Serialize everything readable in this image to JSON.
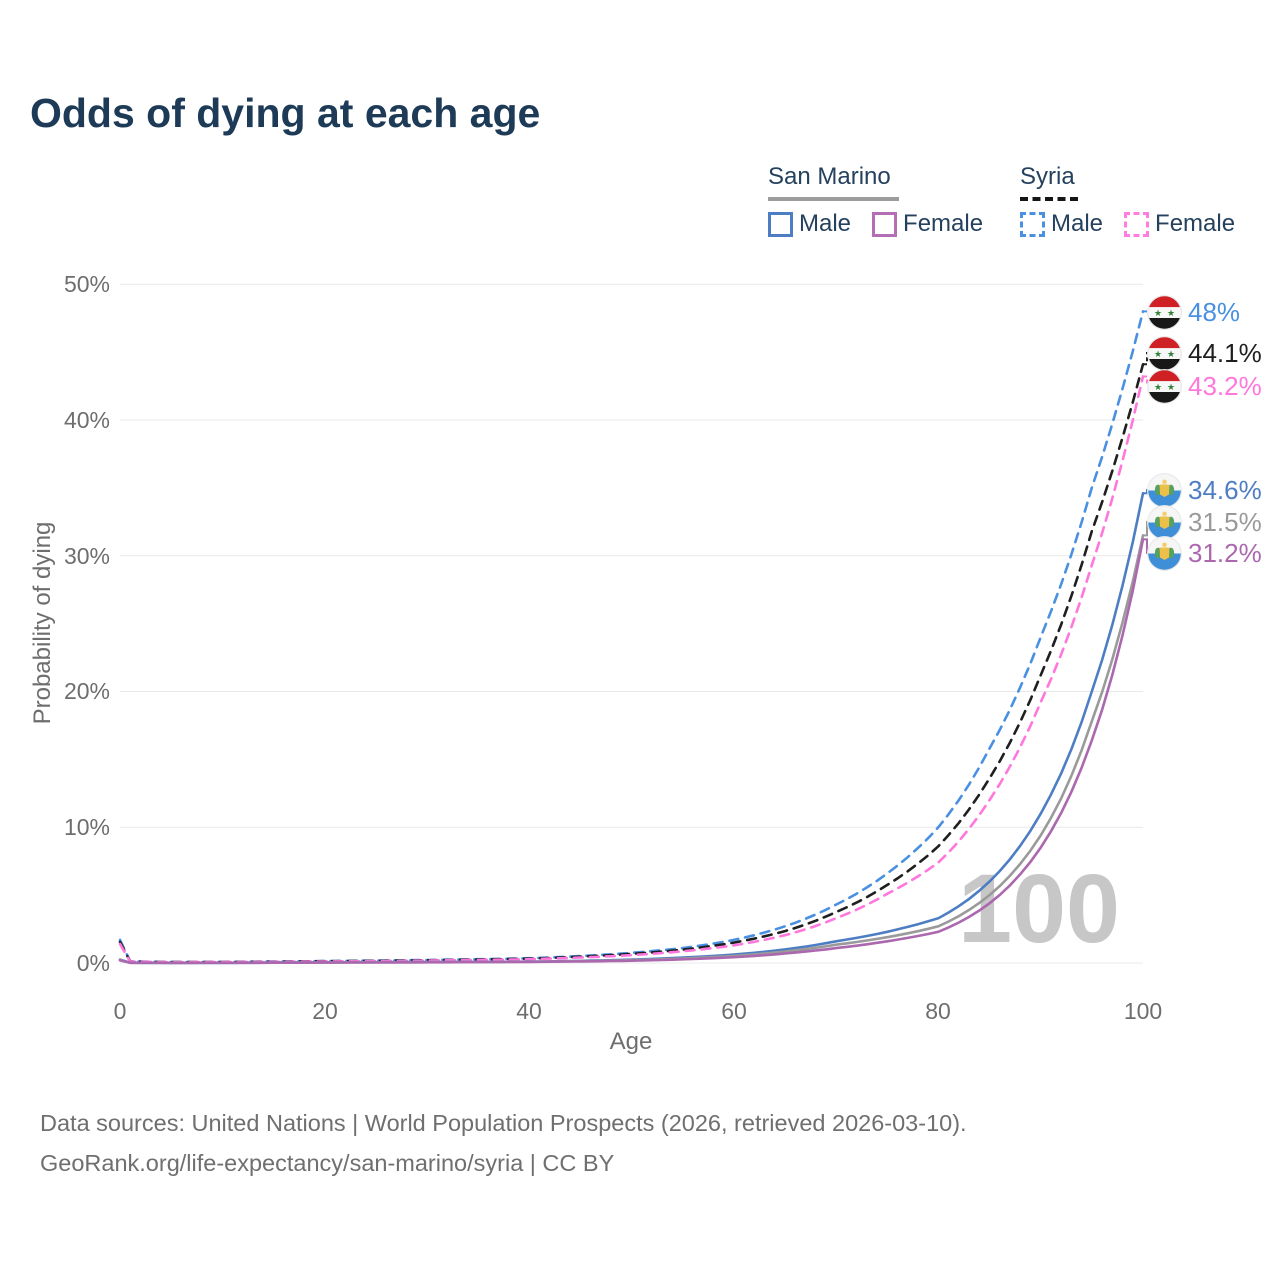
{
  "title": "Odds of dying at each age",
  "legend": {
    "san_marino": {
      "label": "San Marino",
      "male": "Male",
      "female": "Female"
    },
    "syria": {
      "label": "Syria",
      "male": "Male",
      "female": "Female"
    }
  },
  "y_axis": {
    "title": "Probability of dying",
    "ticks": [
      "50%",
      "40%",
      "30%",
      "20%",
      "10%",
      "0%"
    ]
  },
  "x_axis": {
    "title": "Age",
    "ticks": [
      "0",
      "20",
      "40",
      "60",
      "80",
      "100"
    ]
  },
  "watermark": "100",
  "end_labels": [
    {
      "country": "Syria",
      "sex": "Male",
      "text": "48%",
      "color": "#4a90e2",
      "flag": "syria"
    },
    {
      "country": "Syria",
      "sex": "Both sexes",
      "text": "44.1%",
      "color": "#1f1f1f",
      "flag": "syria"
    },
    {
      "country": "Syria",
      "sex": "Female",
      "text": "43.2%",
      "color": "#ff77dd",
      "flag": "syria"
    },
    {
      "country": "San Marino",
      "sex": "Male",
      "text": "34.6%",
      "color": "#4d7ec3",
      "flag": "san-marino"
    },
    {
      "country": "San Marino",
      "sex": "Both sexes",
      "text": "31.5%",
      "color": "#9a9a9a",
      "flag": "san-marino"
    },
    {
      "country": "San Marino",
      "sex": "Female",
      "text": "31.2%",
      "color": "#ab68ae",
      "flag": "san-marino"
    }
  ],
  "footer": {
    "line1": "Data sources: United Nations | World Population Prospects (2026, retrieved 2026-03-10).",
    "line2": "GeoRank.org/life-expectancy/san-marino/syria | CC BY"
  },
  "chart_data": {
    "type": "line",
    "title": "Odds of dying at each age",
    "xlabel": "Age",
    "ylabel": "Probability of dying",
    "xlim": [
      0,
      100
    ],
    "ylim": [
      0,
      50
    ],
    "y_unit": "percent",
    "x_ticks": [
      0,
      20,
      40,
      60,
      80,
      100
    ],
    "y_ticks": [
      0,
      10,
      20,
      30,
      40,
      50
    ],
    "grid": "horizontal",
    "legend_position": "top-right",
    "watermark_age": "100",
    "ages": [
      0,
      1,
      5,
      10,
      20,
      30,
      40,
      50,
      55,
      60,
      65,
      70,
      75,
      80,
      85,
      90,
      95,
      100
    ],
    "series": [
      {
        "id": "syria-male",
        "name": "Syria Male",
        "style": "dashed",
        "color": "#4a90e2",
        "end_value": 48.0,
        "values": [
          1.7,
          0.12,
          0.07,
          0.08,
          0.14,
          0.22,
          0.35,
          0.75,
          1.1,
          1.7,
          2.7,
          4.3,
          6.6,
          10.0,
          15.8,
          24.0,
          35.0,
          48.0
        ]
      },
      {
        "id": "syria-both",
        "name": "Syria Both sexes",
        "style": "dashed",
        "color": "#1f1f1f",
        "end_value": 44.1,
        "values": [
          1.55,
          0.11,
          0.065,
          0.075,
          0.13,
          0.2,
          0.32,
          0.67,
          0.98,
          1.5,
          2.35,
          3.75,
          5.75,
          8.6,
          13.6,
          21.2,
          31.8,
          44.1
        ]
      },
      {
        "id": "syria-female",
        "name": "Syria Female",
        "style": "dashed",
        "color": "#ff77dd",
        "end_value": 43.2,
        "values": [
          1.4,
          0.1,
          0.06,
          0.07,
          0.11,
          0.18,
          0.28,
          0.58,
          0.86,
          1.3,
          2.05,
          3.3,
          5.1,
          7.4,
          12.0,
          19.2,
          29.3,
          43.2
        ]
      },
      {
        "id": "san-marino-male",
        "name": "San Marino Male",
        "style": "solid",
        "color": "#4d7ec3",
        "end_value": 34.6,
        "values": [
          0.25,
          0.02,
          0.012,
          0.015,
          0.05,
          0.07,
          0.1,
          0.25,
          0.4,
          0.62,
          1.0,
          1.6,
          2.3,
          3.3,
          6.0,
          11.0,
          20.0,
          34.6
        ]
      },
      {
        "id": "san-marino-both",
        "name": "San Marino Both sexes",
        "style": "solid",
        "color": "#9a9a9a",
        "end_value": 31.5,
        "values": [
          0.22,
          0.018,
          0.011,
          0.013,
          0.04,
          0.06,
          0.09,
          0.21,
          0.33,
          0.52,
          0.85,
          1.35,
          1.9,
          2.7,
          5.0,
          9.4,
          17.8,
          31.5
        ]
      },
      {
        "id": "san-marino-female",
        "name": "San Marino Female",
        "style": "solid",
        "color": "#ab68ae",
        "end_value": 31.2,
        "values": [
          0.2,
          0.016,
          0.01,
          0.012,
          0.03,
          0.05,
          0.08,
          0.17,
          0.27,
          0.43,
          0.7,
          1.1,
          1.6,
          2.3,
          4.4,
          8.5,
          16.4,
          31.2
        ]
      }
    ]
  }
}
